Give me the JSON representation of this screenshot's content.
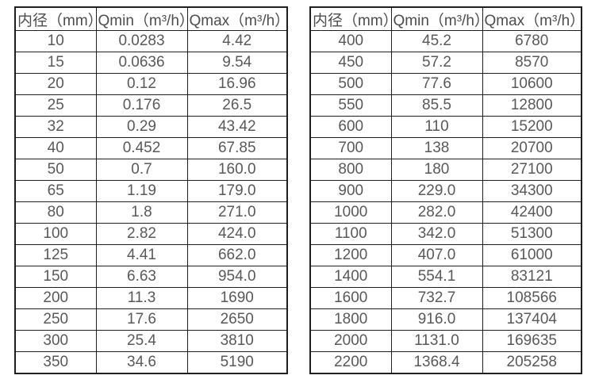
{
  "page": {
    "background_color": "#ffffff",
    "border_color": "#1f1f1f",
    "text_color": "#595959"
  },
  "tables": [
    {
      "name": "small-diameters",
      "headers": [
        "内径（mm）",
        "Qmin（m³/h）",
        "Qmax（m³/h）"
      ],
      "rows": [
        [
          "10",
          "0.0283",
          "4.42"
        ],
        [
          "15",
          "0.0636",
          "9.54"
        ],
        [
          "20",
          "0.12",
          "16.96"
        ],
        [
          "25",
          "0.176",
          "26.5"
        ],
        [
          "32",
          "0.29",
          "43.42"
        ],
        [
          "40",
          "0.452",
          "67.85"
        ],
        [
          "50",
          "0.7",
          "160.0"
        ],
        [
          "65",
          "1.19",
          "179.0"
        ],
        [
          "80",
          "1.8",
          "271.0"
        ],
        [
          "100",
          "2.82",
          "424.0"
        ],
        [
          "125",
          "4.41",
          "662.0"
        ],
        [
          "150",
          "6.63",
          "954.0"
        ],
        [
          "200",
          "11.3",
          "1690"
        ],
        [
          "250",
          "17.6",
          "2650"
        ],
        [
          "300",
          "25.4",
          "3810"
        ],
        [
          "350",
          "34.6",
          "5190"
        ]
      ]
    },
    {
      "name": "large-diameters",
      "headers": [
        "内径（mm）",
        "Qmin（m³/h）",
        "Qmax（m³/h）"
      ],
      "rows": [
        [
          "400",
          "45.2",
          "6780"
        ],
        [
          "450",
          "57.2",
          "8570"
        ],
        [
          "500",
          "77.6",
          "10600"
        ],
        [
          "550",
          "85.5",
          "12800"
        ],
        [
          "600",
          "110",
          "15200"
        ],
        [
          "700",
          "138",
          "20700"
        ],
        [
          "800",
          "180",
          "27100"
        ],
        [
          "900",
          "229.0",
          "34300"
        ],
        [
          "1000",
          "282.0",
          "42400"
        ],
        [
          "1100",
          "342.0",
          "51300"
        ],
        [
          "1200",
          "407.0",
          "61000"
        ],
        [
          "1400",
          "554.1",
          "83121"
        ],
        [
          "1600",
          "732.7",
          "108566"
        ],
        [
          "1800",
          "916.0",
          "137404"
        ],
        [
          "2000",
          "1131.0",
          "169635"
        ],
        [
          "2200",
          "1368.4",
          "205258"
        ]
      ]
    }
  ]
}
